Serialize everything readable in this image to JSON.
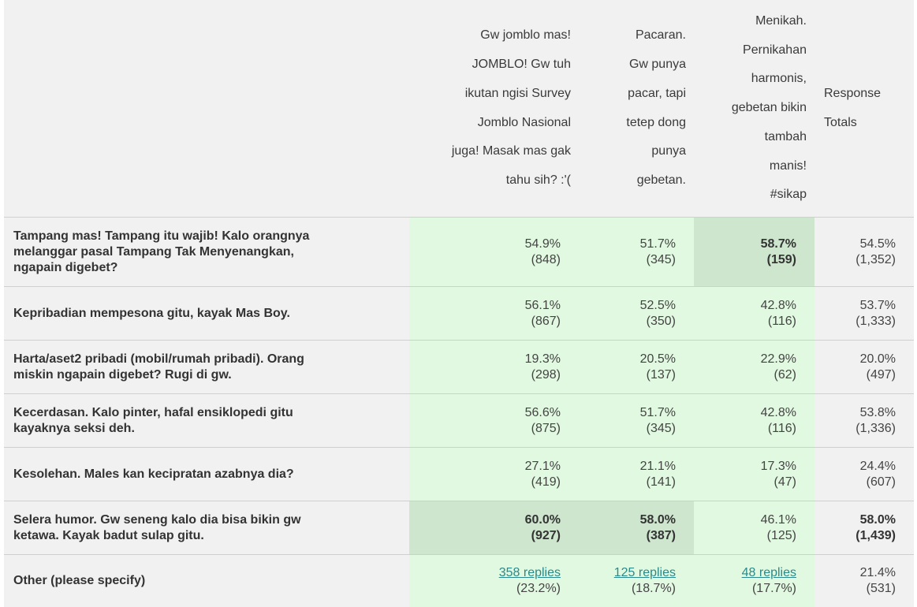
{
  "headers": {
    "col1": [
      "Gw jomblo mas!",
      "JOMBLO! Gw tuh",
      "ikutan ngisi Survey",
      "Jomblo Nasional",
      "juga! Masak mas gak",
      "tahu sih? :'("
    ],
    "col2": [
      "Pacaran.",
      "Gw punya",
      "pacar, tapi",
      "tetep dong",
      "punya",
      "gebetan."
    ],
    "col3": [
      "Menikah.",
      "Pernikahan",
      "harmonis,",
      "gebetan bikin",
      "tambah",
      "manis!",
      "#sikap"
    ],
    "total": [
      "Response",
      "Totals"
    ]
  },
  "rows": [
    {
      "question": [
        "Tampang mas! Tampang itu wajib! Kalo orangnya",
        "melanggar pasal Tampang Tak Menyenangkan,",
        "ngapain digebet?"
      ],
      "c1": {
        "pct": "54.9%",
        "count": "(848)"
      },
      "c2": {
        "pct": "51.7%",
        "count": "(345)"
      },
      "c3": {
        "pct": "58.7%",
        "count": "(159)"
      },
      "total": {
        "pct": "54.5%",
        "count": "(1,352)"
      }
    },
    {
      "question": [
        "Kepribadian mempesona gitu, kayak Mas Boy."
      ],
      "c1": {
        "pct": "56.1%",
        "count": "(867)"
      },
      "c2": {
        "pct": "52.5%",
        "count": "(350)"
      },
      "c3": {
        "pct": "42.8%",
        "count": "(116)"
      },
      "total": {
        "pct": "53.7%",
        "count": "(1,333)"
      }
    },
    {
      "question": [
        "Harta/aset2 pribadi (mobil/rumah pribadi). Orang",
        "miskin ngapain digebet? Rugi di gw."
      ],
      "c1": {
        "pct": "19.3%",
        "count": "(298)"
      },
      "c2": {
        "pct": "20.5%",
        "count": "(137)"
      },
      "c3": {
        "pct": "22.9%",
        "count": "(62)"
      },
      "total": {
        "pct": "20.0%",
        "count": "(497)"
      }
    },
    {
      "question": [
        "Kecerdasan. Kalo pinter, hafal ensiklopedi gitu",
        "kayaknya seksi deh."
      ],
      "c1": {
        "pct": "56.6%",
        "count": "(875)"
      },
      "c2": {
        "pct": "51.7%",
        "count": "(345)"
      },
      "c3": {
        "pct": "42.8%",
        "count": "(116)"
      },
      "total": {
        "pct": "53.8%",
        "count": "(1,336)"
      }
    },
    {
      "question": [
        "Kesolehan. Males kan kecipratan azabnya dia?"
      ],
      "c1": {
        "pct": "27.1%",
        "count": "(419)"
      },
      "c2": {
        "pct": "21.1%",
        "count": "(141)"
      },
      "c3": {
        "pct": "17.3%",
        "count": "(47)"
      },
      "total": {
        "pct": "24.4%",
        "count": "(607)"
      }
    },
    {
      "question": [
        "Selera humor. Gw seneng kalo dia bisa bikin gw",
        "ketawa. Kayak badut sulap gitu."
      ],
      "c1": {
        "pct": "60.0%",
        "count": "(927)"
      },
      "c2": {
        "pct": "58.0%",
        "count": "(387)"
      },
      "c3": {
        "pct": "46.1%",
        "count": "(125)"
      },
      "total": {
        "pct": "58.0%",
        "count": "(1,439)"
      }
    },
    {
      "question": [
        "Other (please specify)"
      ],
      "c1": {
        "link": "358 replies",
        "count": "(23.2%)"
      },
      "c2": {
        "link": "125 replies",
        "count": "(18.7%)"
      },
      "c3": {
        "link": "48 replies",
        "count": "(17.7%)"
      },
      "total": {
        "pct": "21.4%",
        "count": "(531)"
      }
    }
  ],
  "colors": {
    "cell_bg": "#e1f8e1",
    "highlight_bg": "#cde6cd",
    "link": "#2a8a8a",
    "page_bg": "#f1f1f1"
  }
}
